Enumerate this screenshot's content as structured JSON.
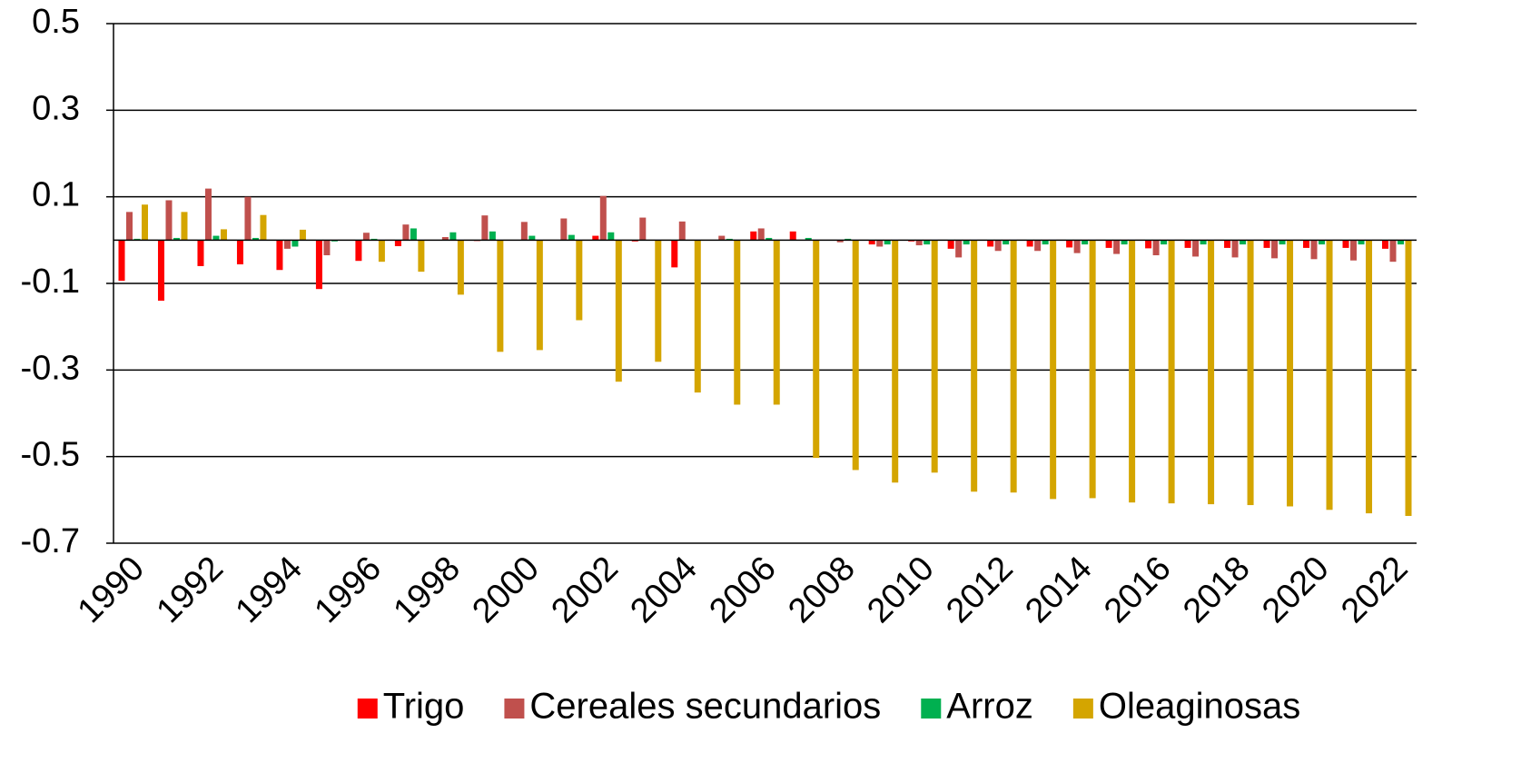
{
  "chart_data": {
    "type": "bar",
    "categories": [
      "1990",
      null,
      "1992",
      null,
      "1994",
      null,
      "1996",
      null,
      "1998",
      null,
      "2000",
      null,
      "2002",
      null,
      "2004",
      null,
      "2006",
      null,
      "2008",
      null,
      "2010",
      null,
      "2012",
      null,
      "2014",
      null,
      "2016",
      null,
      "2018",
      null,
      "2020",
      null,
      "2022"
    ],
    "series": [
      {
        "name": "Trigo",
        "color": "#ff0000",
        "values": [
          -0.094,
          -0.14,
          -0.06,
          -0.056,
          -0.069,
          -0.113,
          -0.048,
          -0.014,
          0,
          -0.002,
          0,
          0,
          0.01,
          -0.003,
          -0.063,
          0,
          0.02,
          0.02,
          0,
          -0.01,
          -0.003,
          -0.02,
          -0.015,
          -0.015,
          -0.017,
          -0.018,
          -0.019,
          -0.018,
          -0.018,
          -0.018,
          -0.018,
          -0.018,
          -0.02
        ]
      },
      {
        "name": "Cereales secundarios",
        "color": "#c0504d",
        "values": [
          0.065,
          0.092,
          0.119,
          0.1,
          -0.02,
          -0.035,
          0.017,
          0.036,
          0.007,
          0.057,
          0.042,
          0.05,
          0.102,
          0.052,
          0.043,
          0.01,
          0.027,
          0,
          -0.005,
          -0.015,
          -0.012,
          -0.04,
          -0.025,
          -0.025,
          -0.03,
          -0.032,
          -0.035,
          -0.038,
          -0.04,
          -0.042,
          -0.044,
          -0.047,
          -0.05
        ]
      },
      {
        "name": "Arroz",
        "color": "#00b050",
        "values": [
          0.003,
          0.005,
          0.01,
          0.005,
          -0.015,
          -0.003,
          0.003,
          0.027,
          0.018,
          0.02,
          0.01,
          0.012,
          0.018,
          0,
          0,
          0.003,
          0.005,
          0.005,
          0.003,
          -0.01,
          -0.01,
          -0.01,
          -0.01,
          -0.01,
          -0.01,
          -0.01,
          -0.01,
          -0.01,
          -0.01,
          -0.01,
          -0.01,
          -0.01,
          -0.01
        ]
      },
      {
        "name": "Oleaginosas",
        "color": "#d4a500",
        "values": [
          0.082,
          0.065,
          0.025,
          0.058,
          0.024,
          0,
          -0.05,
          -0.073,
          -0.126,
          -0.258,
          -0.254,
          -0.185,
          -0.327,
          -0.281,
          -0.352,
          -0.38,
          -0.38,
          -0.503,
          -0.531,
          -0.56,
          -0.537,
          -0.581,
          -0.583,
          -0.598,
          -0.596,
          -0.606,
          -0.608,
          -0.61,
          -0.612,
          -0.615,
          -0.623,
          -0.631,
          -0.637
        ]
      }
    ],
    "ylim": [
      -0.7,
      0.5
    ],
    "yticks": [
      -0.7,
      -0.5,
      -0.3,
      -0.1,
      0.1,
      0.3,
      0.5
    ],
    "grid": true,
    "legend": "bottom"
  }
}
